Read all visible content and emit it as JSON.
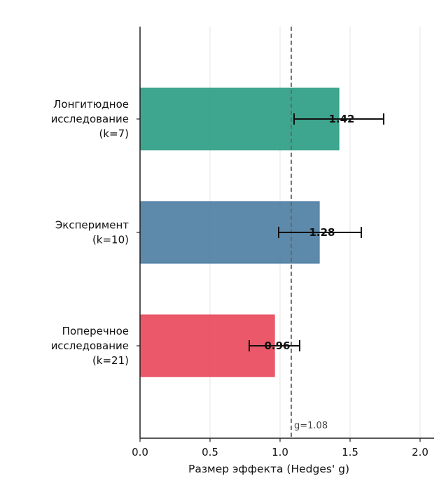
{
  "chart_data": {
    "type": "bar",
    "orientation": "horizontal",
    "xlabel": "Размер эффекта (Hedges' g)",
    "xlim": [
      0,
      2.1
    ],
    "xticks": [
      "0.0",
      "0.5",
      "1.0",
      "1.5",
      "2.0"
    ],
    "grid": "vertical",
    "categories": [
      [
        "Лонгитюдное",
        "исследование",
        "(k=7)"
      ],
      [
        "Эксперимент",
        "(k=10)"
      ],
      [
        "Поперечное",
        "исследование",
        "(k=21)"
      ]
    ],
    "values": [
      1.42,
      1.28,
      0.96
    ],
    "value_labels": [
      "1.42",
      "1.28",
      "0.96"
    ],
    "error_low": [
      1.1,
      0.99,
      0.78
    ],
    "error_high": [
      1.74,
      1.58,
      1.14
    ],
    "colors": [
      "#2e9e86",
      "#4f7fa3",
      "#e84a5c"
    ],
    "reference_line": {
      "value": 1.08,
      "label": "g=1.08"
    }
  }
}
